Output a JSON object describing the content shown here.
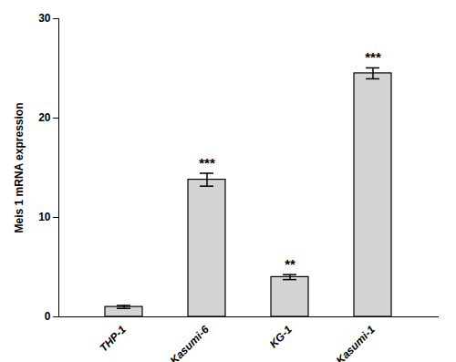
{
  "chart_data": {
    "type": "bar",
    "categories": [
      "THP-1",
      "Kasumi-6",
      "KG-1",
      "Kasumi-1"
    ],
    "values": [
      1.0,
      13.8,
      4.0,
      24.5
    ],
    "errors": [
      0.15,
      0.65,
      0.25,
      0.55
    ],
    "significance": [
      null,
      "***",
      "**",
      "***"
    ],
    "color": "#d4d4d4",
    "ylabel": "Meis 1 mRNA expression",
    "ylim": [
      0,
      30
    ],
    "yticks": [
      0,
      10,
      20,
      30
    ],
    "grid": false
  }
}
